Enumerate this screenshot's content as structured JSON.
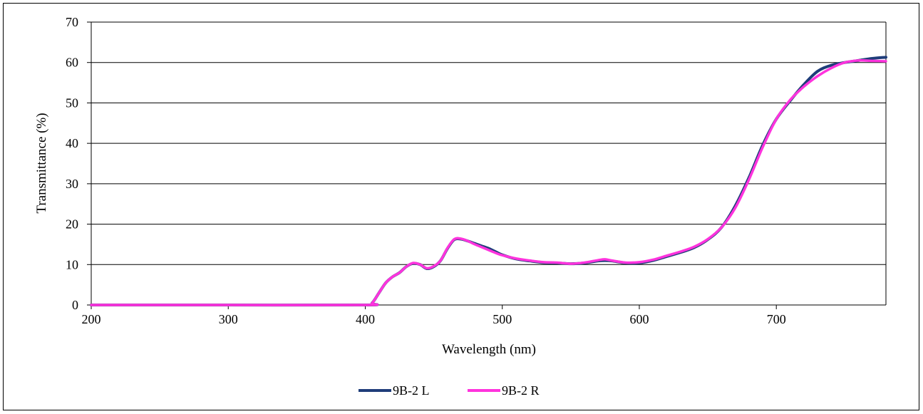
{
  "chart_data": {
    "type": "line",
    "title": "",
    "xlabel": "Wavelength  (nm)",
    "ylabel": "Transmittance (%)",
    "xlim": [
      200,
      780
    ],
    "ylim": [
      0,
      70
    ],
    "x_ticks": [
      200,
      300,
      400,
      500,
      600,
      700
    ],
    "y_ticks": [
      0,
      10,
      20,
      30,
      40,
      50,
      60,
      70
    ],
    "grid": "horizontal",
    "legend_position": "bottom",
    "series": [
      {
        "name": "9B-2 L",
        "color": "#1f3d7a",
        "points": [
          [
            200,
            0
          ],
          [
            300,
            0
          ],
          [
            400,
            0
          ],
          [
            405,
            0.5
          ],
          [
            410,
            3
          ],
          [
            415,
            5.5
          ],
          [
            420,
            7
          ],
          [
            425,
            8
          ],
          [
            430,
            9.5
          ],
          [
            435,
            10.3
          ],
          [
            440,
            10
          ],
          [
            445,
            9
          ],
          [
            450,
            9.5
          ],
          [
            455,
            11
          ],
          [
            460,
            14
          ],
          [
            465,
            16.2
          ],
          [
            470,
            16.3
          ],
          [
            475,
            15.8
          ],
          [
            480,
            15.2
          ],
          [
            485,
            14.6
          ],
          [
            490,
            14
          ],
          [
            495,
            13.2
          ],
          [
            500,
            12.4
          ],
          [
            510,
            11.4
          ],
          [
            520,
            10.9
          ],
          [
            530,
            10.5
          ],
          [
            540,
            10.4
          ],
          [
            550,
            10.2
          ],
          [
            560,
            10.4
          ],
          [
            570,
            10.9
          ],
          [
            575,
            11
          ],
          [
            580,
            10.9
          ],
          [
            590,
            10.4
          ],
          [
            600,
            10.4
          ],
          [
            610,
            11
          ],
          [
            620,
            12
          ],
          [
            630,
            13
          ],
          [
            640,
            14.2
          ],
          [
            650,
            16.2
          ],
          [
            660,
            19.2
          ],
          [
            670,
            24.5
          ],
          [
            680,
            31.5
          ],
          [
            690,
            39.5
          ],
          [
            700,
            46
          ],
          [
            710,
            50.5
          ],
          [
            720,
            54.5
          ],
          [
            730,
            57.8
          ],
          [
            740,
            59.3
          ],
          [
            750,
            60
          ],
          [
            760,
            60.5
          ],
          [
            770,
            61
          ],
          [
            780,
            61.3
          ]
        ]
      },
      {
        "name": "9B-2 R",
        "color": "#ff33dd",
        "points": [
          [
            200,
            0
          ],
          [
            300,
            0
          ],
          [
            400,
            0
          ],
          [
            405,
            0.5
          ],
          [
            410,
            3
          ],
          [
            415,
            5.5
          ],
          [
            420,
            7
          ],
          [
            425,
            8
          ],
          [
            430,
            9.5
          ],
          [
            435,
            10.4
          ],
          [
            440,
            10
          ],
          [
            445,
            9.1
          ],
          [
            450,
            9.6
          ],
          [
            455,
            11
          ],
          [
            460,
            14.1
          ],
          [
            465,
            16.3
          ],
          [
            470,
            16.4
          ],
          [
            475,
            15.8
          ],
          [
            480,
            15
          ],
          [
            485,
            14.3
          ],
          [
            490,
            13.6
          ],
          [
            495,
            12.9
          ],
          [
            500,
            12.3
          ],
          [
            510,
            11.5
          ],
          [
            520,
            11
          ],
          [
            530,
            10.6
          ],
          [
            540,
            10.5
          ],
          [
            550,
            10.2
          ],
          [
            560,
            10.5
          ],
          [
            570,
            11.1
          ],
          [
            575,
            11.3
          ],
          [
            580,
            11
          ],
          [
            590,
            10.5
          ],
          [
            600,
            10.6
          ],
          [
            610,
            11.2
          ],
          [
            620,
            12.2
          ],
          [
            630,
            13.2
          ],
          [
            640,
            14.4
          ],
          [
            650,
            16.3
          ],
          [
            660,
            19.2
          ],
          [
            670,
            24
          ],
          [
            680,
            31
          ],
          [
            690,
            39
          ],
          [
            700,
            46
          ],
          [
            710,
            50.7
          ],
          [
            720,
            54
          ],
          [
            730,
            56.6
          ],
          [
            740,
            58.6
          ],
          [
            750,
            60
          ],
          [
            760,
            60.5
          ],
          [
            770,
            60.4
          ],
          [
            780,
            60.3
          ]
        ]
      }
    ]
  }
}
